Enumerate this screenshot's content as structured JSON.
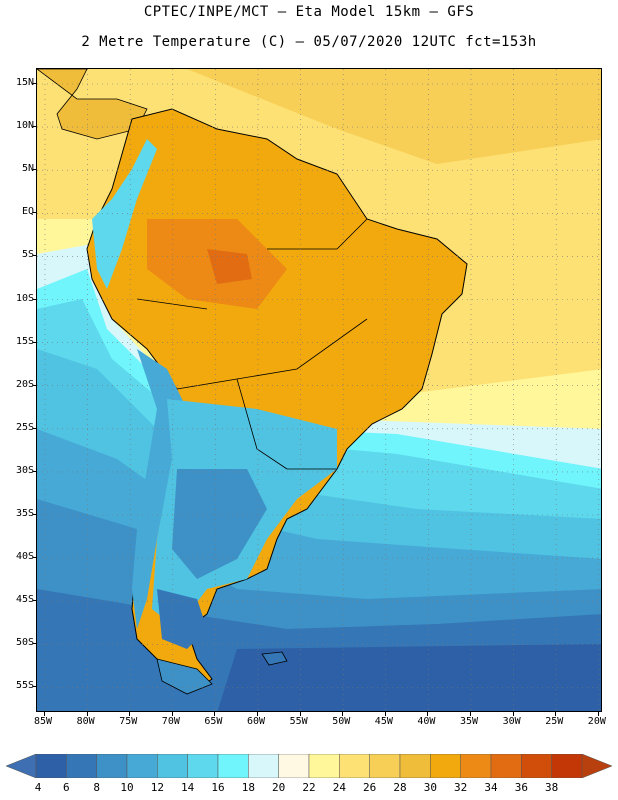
{
  "header": {
    "line1": "CPTEC/INPE/MCT –  Eta Model 15km – GFS",
    "line2": "2 Metre Temperature (C) – 05/07/2020 12UTC fct=153h"
  },
  "axes": {
    "lat_labels": [
      "15N",
      "10N",
      "5N",
      "EQ",
      "5S",
      "10S",
      "15S",
      "20S",
      "25S",
      "30S",
      "35S",
      "40S",
      "45S",
      "50S",
      "55S"
    ],
    "lon_labels": [
      "85W",
      "80W",
      "75W",
      "70W",
      "65W",
      "60W",
      "55W",
      "50W",
      "45W",
      "40W",
      "35W",
      "30W",
      "25W",
      "20W"
    ]
  },
  "legend": {
    "units": "C",
    "ticks": [
      "4",
      "6",
      "8",
      "10",
      "12",
      "14",
      "16",
      "18",
      "20",
      "22",
      "24",
      "26",
      "28",
      "30",
      "32",
      "34",
      "36",
      "38"
    ],
    "colors": [
      "#2e60a7",
      "#3476b6",
      "#3e91c6",
      "#47a9d6",
      "#50c3e2",
      "#5ed8ec",
      "#6ff5fb",
      "#d8f7fb",
      "#fff9e3",
      "#fff79a",
      "#fde174",
      "#f7cf56",
      "#f0bd3a",
      "#f2a90e",
      "#ec8a15",
      "#e26c12",
      "#d14e0a",
      "#c33706"
    ],
    "low_color": "#3d6fb2",
    "high_color": "#b7400e"
  }
}
